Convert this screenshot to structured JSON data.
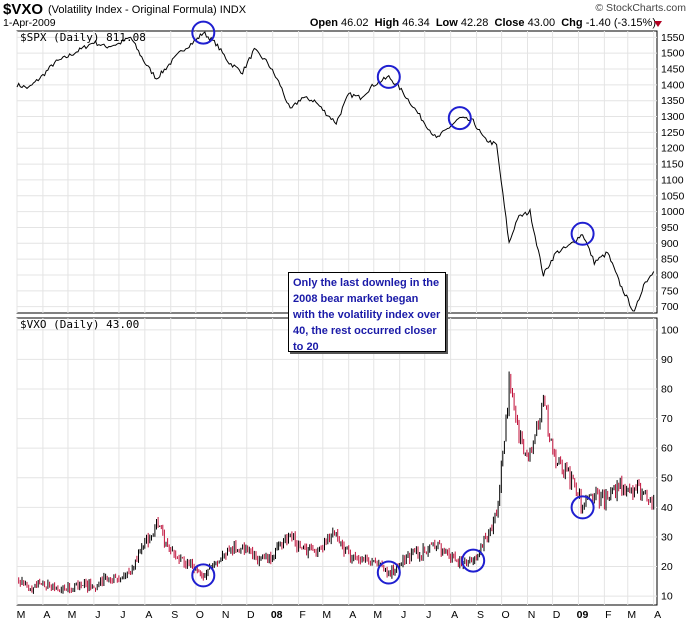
{
  "header": {
    "symbol": "$VXO",
    "description": "(Volatility Index - Original Formula)",
    "exchange": "INDX",
    "date": "1-Apr-2009",
    "brand": "© StockCharts.com",
    "open_label": "Open",
    "open": "46.02",
    "high_label": "High",
    "high": "46.34",
    "low_label": "Low",
    "low": "42.28",
    "close_label": "Close",
    "close": "43.00",
    "chg_label": "Chg",
    "chg": "-1.40 (-3.15%)"
  },
  "annotation": "Only the last downleg in the 2008 bear market began with the volatility index over 40, the rest occurred closer to 20",
  "colors": {
    "circle": "#1f1fd0",
    "spx_line": "#000000",
    "vxo_up": "#000000",
    "vxo_down": "#c0103a"
  },
  "chart_data": [
    {
      "type": "line",
      "legend": "$SPX (Daily) 811.08",
      "series": [
        {
          "name": "$SPX",
          "x": [
            "2007-03-01",
            "2007-03-15",
            "2007-04-01",
            "2007-04-15",
            "2007-05-01",
            "2007-05-15",
            "2007-06-01",
            "2007-06-15",
            "2007-07-01",
            "2007-07-15",
            "2007-08-01",
            "2007-08-15",
            "2007-09-01",
            "2007-09-15",
            "2007-10-01",
            "2007-10-10",
            "2007-10-25",
            "2007-11-10",
            "2007-11-26",
            "2007-12-10",
            "2007-12-26",
            "2008-01-10",
            "2008-01-22",
            "2008-02-05",
            "2008-02-20",
            "2008-03-05",
            "2008-03-17",
            "2008-04-01",
            "2008-04-15",
            "2008-05-01",
            "2008-05-19",
            "2008-06-01",
            "2008-06-15",
            "2008-07-01",
            "2008-07-15",
            "2008-08-01",
            "2008-08-12",
            "2008-08-28",
            "2008-09-10",
            "2008-09-25",
            "2008-10-10",
            "2008-10-20",
            "2008-11-04",
            "2008-11-20",
            "2008-12-05",
            "2008-12-20",
            "2009-01-06",
            "2009-01-20",
            "2009-02-05",
            "2009-02-20",
            "2009-03-09",
            "2009-03-20",
            "2009-04-01"
          ],
          "values": [
            1400,
            1390,
            1430,
            1470,
            1490,
            1510,
            1535,
            1520,
            1530,
            1550,
            1470,
            1420,
            1470,
            1510,
            1540,
            1565,
            1530,
            1470,
            1440,
            1510,
            1470,
            1400,
            1320,
            1360,
            1350,
            1310,
            1280,
            1370,
            1360,
            1400,
            1425,
            1390,
            1340,
            1280,
            1230,
            1270,
            1295,
            1285,
            1230,
            1210,
            900,
            980,
            1000,
            800,
            870,
            890,
            930,
            840,
            870,
            770,
            680,
            770,
            811
          ]
        }
      ],
      "ylim": [
        680,
        1570
      ],
      "yticks": [
        700,
        750,
        800,
        850,
        900,
        950,
        1000,
        1050,
        1100,
        1150,
        1200,
        1250,
        1300,
        1350,
        1400,
        1450,
        1500,
        1550
      ],
      "yticklabels": [
        "700",
        "750",
        "800",
        "850",
        "900",
        "950",
        "1000",
        "1050",
        "1100",
        "1150",
        "1200",
        "1250",
        "1300",
        "1350",
        "1400",
        "1450",
        "1500",
        "1550"
      ],
      "circles_at": [
        "2007-10-10",
        "2008-05-19",
        "2008-08-12",
        "2009-01-06"
      ]
    },
    {
      "type": "line",
      "legend": "$VXO (Daily) 43.00",
      "series": [
        {
          "name": "$VXO",
          "x": [
            "2007-03-01",
            "2007-03-15",
            "2007-04-01",
            "2007-04-15",
            "2007-05-01",
            "2007-05-15",
            "2007-06-01",
            "2007-06-15",
            "2007-07-01",
            "2007-07-15",
            "2007-08-01",
            "2007-08-15",
            "2007-09-01",
            "2007-09-15",
            "2007-10-01",
            "2007-10-10",
            "2007-10-25",
            "2007-11-10",
            "2007-11-26",
            "2007-12-10",
            "2007-12-26",
            "2008-01-10",
            "2008-01-22",
            "2008-02-05",
            "2008-02-20",
            "2008-03-05",
            "2008-03-17",
            "2008-04-01",
            "2008-04-15",
            "2008-05-01",
            "2008-05-19",
            "2008-06-01",
            "2008-06-15",
            "2008-07-01",
            "2008-07-15",
            "2008-08-01",
            "2008-08-12",
            "2008-08-28",
            "2008-09-10",
            "2008-09-25",
            "2008-10-10",
            "2008-10-20",
            "2008-11-04",
            "2008-11-20",
            "2008-12-05",
            "2008-12-20",
            "2009-01-06",
            "2009-01-20",
            "2009-02-05",
            "2009-02-20",
            "2009-03-09",
            "2009-03-20",
            "2009-04-01"
          ],
          "values": [
            17,
            12,
            14,
            13,
            13,
            14,
            13,
            16,
            15,
            18,
            28,
            34,
            25,
            22,
            19,
            17,
            22,
            26,
            27,
            23,
            22,
            27,
            30,
            26,
            25,
            28,
            31,
            24,
            23,
            21,
            18,
            21,
            24,
            25,
            28,
            23,
            21,
            22,
            28,
            38,
            80,
            65,
            60,
            75,
            55,
            50,
            40,
            45,
            42,
            48,
            47,
            45,
            43
          ]
        }
      ],
      "ylim": [
        7,
        104
      ],
      "yticks": [
        10,
        20,
        30,
        40,
        50,
        60,
        70,
        80,
        90,
        100
      ],
      "yticklabels": [
        "10",
        "20",
        "30",
        "40",
        "50",
        "60",
        "70",
        "80",
        "90",
        "100"
      ],
      "circles_at": [
        "2007-10-10",
        "2008-05-19",
        "2008-08-28",
        "2009-01-06"
      ]
    }
  ],
  "xaxis": {
    "range": [
      "2007-03-01",
      "2009-04-05"
    ],
    "ticks": [
      "2007-03-01",
      "2007-04-01",
      "2007-05-01",
      "2007-06-01",
      "2007-07-01",
      "2007-08-01",
      "2007-09-01",
      "2007-10-01",
      "2007-11-01",
      "2007-12-01",
      "2008-01-01",
      "2008-02-01",
      "2008-03-01",
      "2008-04-01",
      "2008-05-01",
      "2008-06-01",
      "2008-07-01",
      "2008-08-01",
      "2008-09-01",
      "2008-10-01",
      "2008-11-01",
      "2008-12-01",
      "2009-01-01",
      "2009-02-01",
      "2009-03-01",
      "2009-04-01"
    ],
    "ticklabels": [
      "M",
      "A",
      "M",
      "J",
      "J",
      "A",
      "S",
      "O",
      "N",
      "D",
      "08",
      "F",
      "M",
      "A",
      "M",
      "J",
      "J",
      "A",
      "S",
      "O",
      "N",
      "D",
      "09",
      "F",
      "M",
      "A"
    ]
  }
}
